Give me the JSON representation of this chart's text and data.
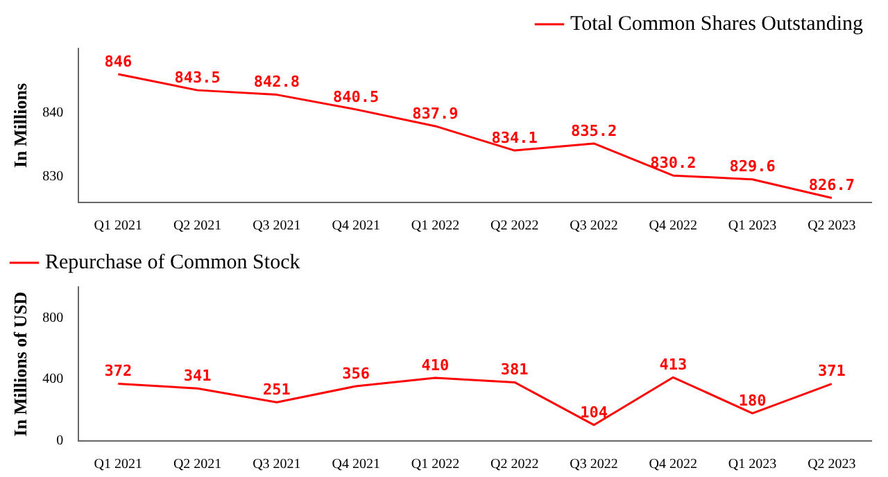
{
  "chart_data": [
    {
      "type": "line",
      "ylabel": "In Millions",
      "categories": [
        "Q1 2021",
        "Q2 2021",
        "Q3 2021",
        "Q4 2021",
        "Q1 2022",
        "Q2 2022",
        "Q3 2022",
        "Q4 2022",
        "Q1 2023",
        "Q2 2023"
      ],
      "series": [
        {
          "name": "Total Common Shares Outstanding",
          "color": "#ff0000",
          "values": [
            846,
            843.5,
            842.8,
            840.5,
            837.9,
            834.1,
            835.2,
            830.2,
            829.6,
            826.7
          ]
        }
      ],
      "ylim": [
        826,
        850
      ],
      "yticks": [
        830,
        840
      ],
      "grid": false,
      "legend": "top right",
      "data_labels": true,
      "marker": "none"
    },
    {
      "type": "line",
      "ylabel": "In Millions of USD",
      "categories": [
        "Q1 2021",
        "Q2 2021",
        "Q3 2021",
        "Q4 2021",
        "Q1 2022",
        "Q2 2022",
        "Q3 2022",
        "Q4 2022",
        "Q1 2023",
        "Q2 2023"
      ],
      "series": [
        {
          "name": "Repurchase of Common Stock",
          "color": "#ff0000",
          "values": [
            372,
            341,
            251,
            356,
            410,
            381,
            104,
            413,
            180,
            371
          ]
        }
      ],
      "ylim": [
        0,
        1000
      ],
      "yticks": [
        0,
        400,
        800
      ],
      "grid": false,
      "legend": "top left",
      "data_labels": true,
      "marker": "none"
    }
  ]
}
